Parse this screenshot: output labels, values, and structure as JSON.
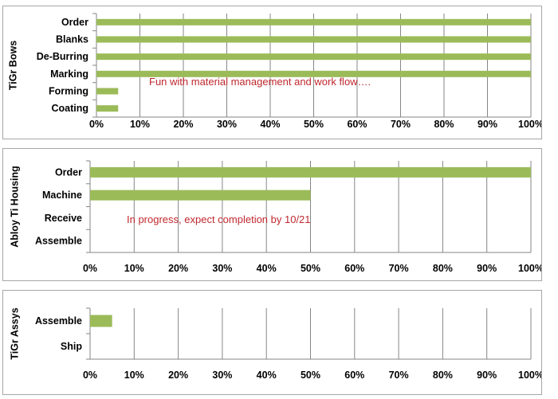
{
  "colors": {
    "bar": "#9bbb59",
    "annotation": "#c0282e",
    "gridline": "#868686"
  },
  "chart_data": [
    {
      "type": "bar",
      "orientation": "horizontal",
      "title": "TiGr Bows",
      "categories": [
        "Order",
        "Blanks",
        "De-Burring",
        "Marking",
        "Forming",
        "Coating"
      ],
      "values": [
        100,
        100,
        100,
        100,
        5,
        5
      ],
      "xlim": [
        0,
        100
      ],
      "ticks": [
        "0%",
        "10%",
        "20%",
        "30%",
        "40%",
        "50%",
        "60%",
        "70%",
        "80%",
        "90%",
        "100%"
      ],
      "grid": true,
      "annotation": "Fun with material management and work flow…."
    },
    {
      "type": "bar",
      "orientation": "horizontal",
      "title": "Abloy Ti Housing",
      "categories": [
        "Order",
        "Machine",
        "Receive",
        "Assemble"
      ],
      "values": [
        100,
        50,
        0,
        0
      ],
      "xlim": [
        0,
        100
      ],
      "ticks": [
        "0%",
        "10%",
        "20%",
        "30%",
        "40%",
        "50%",
        "60%",
        "70%",
        "80%",
        "90%",
        "100%"
      ],
      "grid": true,
      "annotation": "In progress, expect completion by 10/21"
    },
    {
      "type": "bar",
      "orientation": "horizontal",
      "title": "TiGr Assys",
      "categories": [
        "Assemble",
        "Ship"
      ],
      "values": [
        5,
        0
      ],
      "xlim": [
        0,
        100
      ],
      "ticks": [
        "0%",
        "10%",
        "20%",
        "30%",
        "40%",
        "50%",
        "60%",
        "70%",
        "80%",
        "90%",
        "100%"
      ],
      "grid": true,
      "annotation": ""
    }
  ]
}
